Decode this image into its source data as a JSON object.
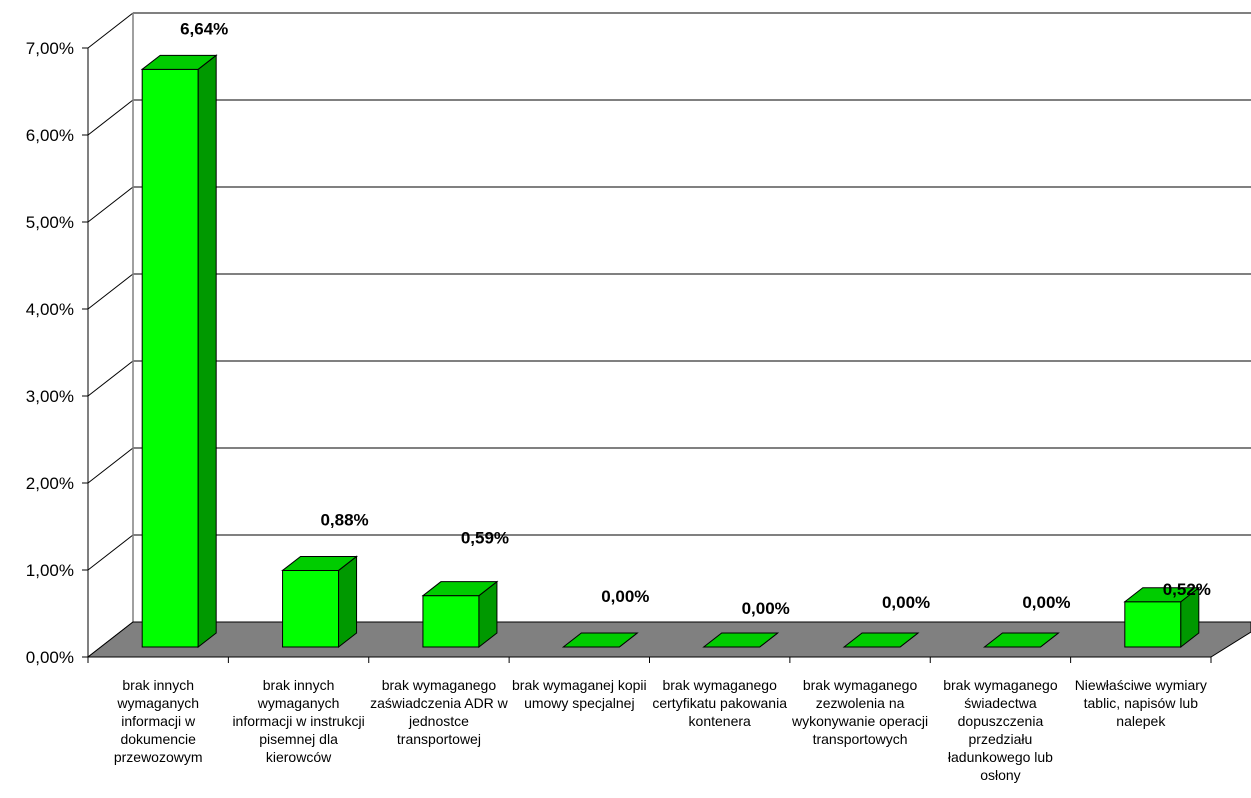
{
  "chart_data": {
    "type": "bar",
    "title": "",
    "xlabel": "",
    "ylabel": "",
    "ylim": [
      0,
      7
    ],
    "y_ticks": [
      "0,00%",
      "1,00%",
      "2,00%",
      "3,00%",
      "4,00%",
      "5,00%",
      "6,00%",
      "7,00%"
    ],
    "grid": true,
    "style": "3d",
    "colors": {
      "bar_front": "#00ff00",
      "bar_side": "#009900",
      "bar_top": "#00cc00",
      "floor": "#808080",
      "gridline": "#000000"
    },
    "categories": [
      "brak innych wymaganych informacji w dokumencie przewozowym",
      "brak innych wymaganych informacji w instrukcji pisemnej dla kierowców",
      "brak wymaganego zaświadczenia ADR w jednostce transportowej",
      "brak wymaganej kopii umowy specjalnej",
      "brak wymaganego certyfikatu pakowania kontenera",
      "brak wymaganego zezwolenia na wykonywanie operacji transportowych",
      "brak wymaganego świadectwa dopuszczenia przedziału ładunkowego lub osłony",
      "Niewłaściwe wymiary tablic, napisów lub nalepek"
    ],
    "values": [
      6.64,
      0.88,
      0.59,
      0.0,
      0.0,
      0.0,
      0.0,
      0.52
    ],
    "data_labels": [
      "6,64%",
      "0,88%",
      "0,59%",
      "0,00%",
      "0,00%",
      "0,00%",
      "0,00%",
      "0,52%"
    ]
  }
}
